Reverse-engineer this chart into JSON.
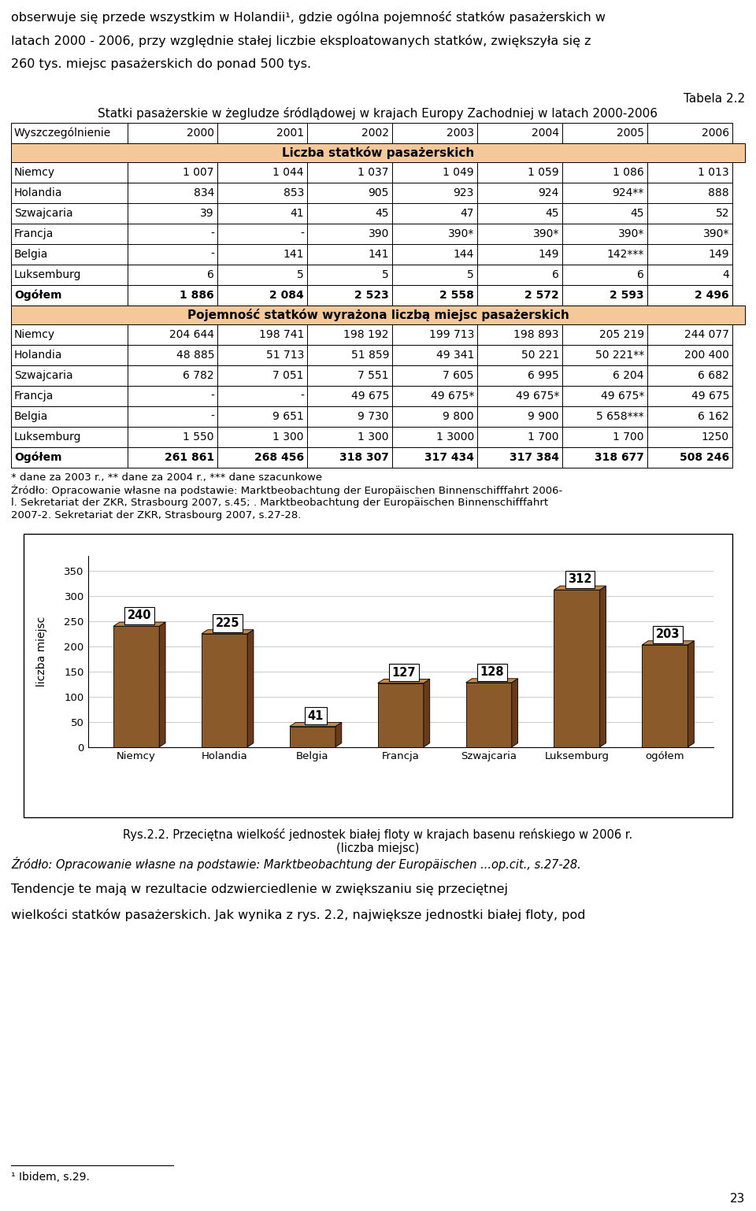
{
  "page_width": 9.6,
  "page_height": 15.38,
  "bg_color": "#ffffff",
  "top_text_lines": [
    "obserwuje się przede wszystkim w Holandii¹, gdzie ogólna pojemność statków pasażerskich w",
    "latach 2000 - 2006, przy względnie stałej liczbie eksploatowanych statków, zwiększyła się z",
    "260 tys. miejsc pasażerskich do ponad 500 tys."
  ],
  "tabela_label": "Tabela 2.2",
  "table_title": "Statki pasażerskie w żegludze śródlądowej w krajach Europy Zachodniej w latach 2000-2006",
  "col_headers": [
    "Wyszczególnienie",
    "2000",
    "2001",
    "2002",
    "2003",
    "2004",
    "2005",
    "2006"
  ],
  "section1_label": "Liczba statków pasażerskich",
  "section1_rows": [
    [
      "Niemcy",
      "1 007",
      "1 044",
      "1 037",
      "1 049",
      "1 059",
      "1 086",
      "1 013"
    ],
    [
      "Holandia",
      "834",
      "853",
      "905",
      "923",
      "924",
      "924**",
      "888"
    ],
    [
      "Szwajcaria",
      "39",
      "41",
      "45",
      "47",
      "45",
      "45",
      "52"
    ],
    [
      "Francja",
      "-",
      "-",
      "390",
      "390*",
      "390*",
      "390*",
      "390*"
    ],
    [
      "Belgia",
      "-",
      "141",
      "141",
      "144",
      "149",
      "142***",
      "149"
    ],
    [
      "Luksemburg",
      "6",
      "5",
      "5",
      "5",
      "6",
      "6",
      "4"
    ],
    [
      "Ogółem",
      "1 886",
      "2 084",
      "2 523",
      "2 558",
      "2 572",
      "2 593",
      "2 496"
    ]
  ],
  "section2_label": "Pojemność statków wyrażona liczbą miejsc pasażerskich",
  "section2_rows": [
    [
      "Niemcy",
      "204 644",
      "198 741",
      "198 192",
      "199 713",
      "198 893",
      "205 219",
      "244 077"
    ],
    [
      "Holandia",
      "48 885",
      "51 713",
      "51 859",
      "49 341",
      "50 221",
      "50 221**",
      "200 400"
    ],
    [
      "Szwajcaria",
      "6 782",
      "7 051",
      "7 551",
      "7 605",
      "6 995",
      "6 204",
      "6 682"
    ],
    [
      "Francja",
      "-",
      "-",
      "49 675",
      "49 675*",
      "49 675*",
      "49 675*",
      "49 675"
    ],
    [
      "Belgia",
      "-",
      "9 651",
      "9 730",
      "9 800",
      "9 900",
      "5 658***",
      "6 162"
    ],
    [
      "Luksemburg",
      "1 550",
      "1 300",
      "1 300",
      "1 3000",
      "1 700",
      "1 700",
      "1250"
    ],
    [
      "Ogółem",
      "261 861",
      "268 456",
      "318 307",
      "317 434",
      "317 384",
      "318 677",
      "508 246"
    ]
  ],
  "footnotes": [
    "* dane za 2003 r., ** dane za 2004 r., *** dane szacunkowe",
    "Źródło: Opracowanie własne na podstawie: Marktbeobachtung der Europäischen Binnenschifffahrt 2006-",
    "l. Sekretariat der ZKR, Strasbourg 2007, s.45; . Marktbeobachtung der Europäischen Binnenschifffahrt",
    "2007-2. Sekretariat der ZKR, Strasbourg 2007, s.27-28."
  ],
  "chart_categories": [
    "Niemcy",
    "Holandia",
    "Belgia",
    "Francja",
    "Szwajcaria",
    "Luksemburg",
    "ogółem"
  ],
  "chart_values": [
    240,
    225,
    41,
    127,
    128,
    312,
    203
  ],
  "bar_face_color": "#8B5A2B",
  "bar_side_color": "#6B3A1A",
  "bar_top_color": "#C4894A",
  "ylim": [
    0,
    380
  ],
  "yticks": [
    0,
    50,
    100,
    150,
    200,
    250,
    300,
    350
  ],
  "ylabel": "liczba miejsc",
  "caption_line1": "Rys.2.2. Przeciętna wielkość jednostek białej floty w krajach basenu reńskiego w 2006 r.",
  "caption_line2": "(liczba miejsc)",
  "caption_line3": "Źródło: Opracowanie własne na podstawie: Marktbeobachtung der Europäischen ...op.cit., s.27-28.",
  "bottom_text_lines": [
    "Tendencje te mają w rezultacie odzwierciedlenie w zwiększaniu się przeciętnej",
    "wielkości statków pasażerskich. Jak wynika z rys. 2.2, największe jednostki białej floty, pod"
  ],
  "footnote_bottom": "¹ Ibidem, s.29.",
  "page_number": "23"
}
